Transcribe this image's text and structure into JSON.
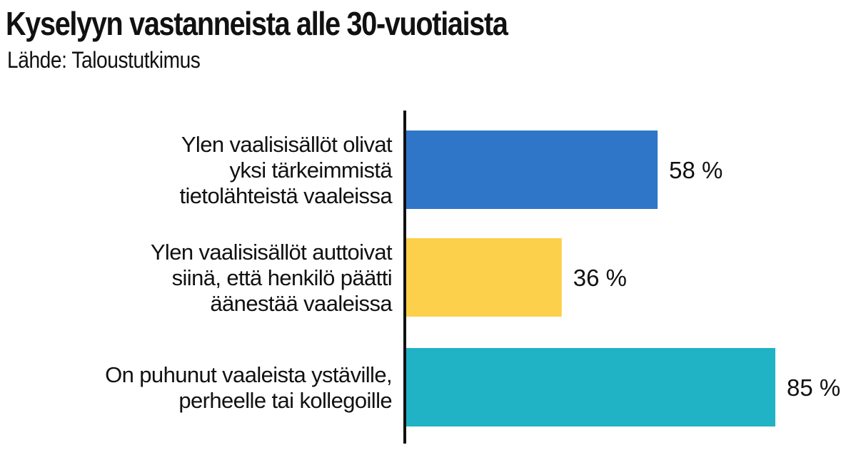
{
  "chart_data": {
    "type": "bar",
    "orientation": "horizontal",
    "title": "Kyselyyn vastanneista alle 30-vuotiaista",
    "subtitle": "Lähde: Taloustutkimus",
    "categories": [
      [
        "Ylen vaalisisällöt olivat",
        "yksi tärkeimmistä",
        "tietolähteistä vaaleissa"
      ],
      [
        "Ylen vaalisisällöt auttoivat",
        "siinä, että henkilö päätti",
        "äänestää vaaleissa"
      ],
      [
        "On puhunut vaaleista ystäville,",
        "perheelle tai kollegoille"
      ]
    ],
    "values": [
      58,
      36,
      85
    ],
    "value_labels": [
      "58 %",
      "36 %",
      "85 %"
    ],
    "colors": [
      "#2f76c9",
      "#fcd04a",
      "#20b2c5"
    ],
    "xlim": [
      0,
      100
    ],
    "grid": false,
    "legend": "none"
  },
  "colors": {
    "axis": "#111111",
    "text": "#111111"
  }
}
